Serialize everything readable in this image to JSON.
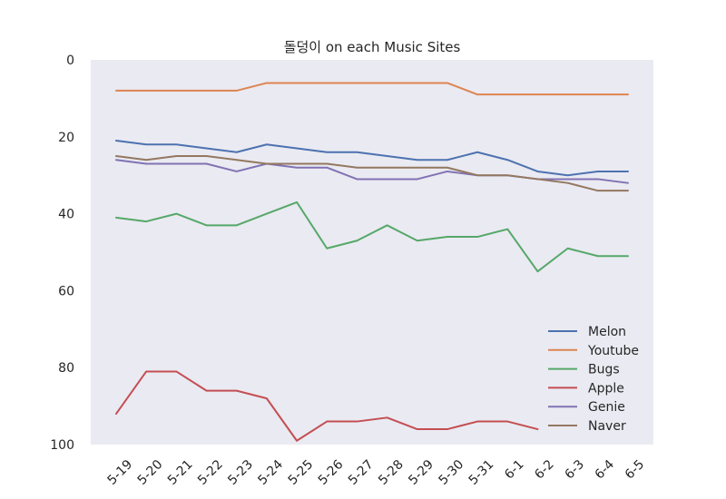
{
  "chart_data": {
    "type": "line",
    "title": "돌덩이 on each Music Sites",
    "xlabel": "",
    "ylabel": "",
    "categories": [
      "5-19",
      "5-20",
      "5-21",
      "5-22",
      "5-23",
      "5-24",
      "5-25",
      "5-26",
      "5-27",
      "5-28",
      "5-29",
      "5-30",
      "5-31",
      "6-1",
      "6-2",
      "6-3",
      "6-4",
      "6-5"
    ],
    "ylim": [
      100,
      0
    ],
    "y_inverted": true,
    "yticks": [
      0,
      20,
      40,
      60,
      80,
      100
    ],
    "grid": false,
    "legend_position": "lower-right",
    "series": [
      {
        "name": "Melon",
        "color": "#4c72b0",
        "values": [
          21,
          22,
          22,
          23,
          24,
          22,
          23,
          24,
          24,
          25,
          26,
          26,
          24,
          26,
          29,
          30,
          29,
          29
        ]
      },
      {
        "name": "Youtube",
        "color": "#dd8452",
        "values": [
          8,
          8,
          8,
          8,
          8,
          6,
          6,
          6,
          6,
          6,
          6,
          6,
          9,
          9,
          9,
          9,
          9,
          9
        ]
      },
      {
        "name": "Bugs",
        "color": "#55a868",
        "values": [
          41,
          42,
          40,
          43,
          43,
          40,
          37,
          49,
          47,
          43,
          47,
          46,
          46,
          44,
          55,
          49,
          51,
          51
        ]
      },
      {
        "name": "Apple",
        "color": "#c44e52",
        "values": [
          92,
          81,
          81,
          86,
          86,
          88,
          99,
          94,
          94,
          93,
          96,
          96,
          94,
          94,
          96,
          null,
          null,
          null
        ]
      },
      {
        "name": "Genie",
        "color": "#8172b3",
        "values": [
          26,
          27,
          27,
          27,
          29,
          27,
          28,
          28,
          31,
          31,
          31,
          29,
          30,
          30,
          31,
          31,
          31,
          32
        ]
      },
      {
        "name": "Naver",
        "color": "#937860",
        "values": [
          25,
          26,
          25,
          25,
          26,
          27,
          27,
          27,
          28,
          28,
          28,
          28,
          30,
          30,
          31,
          32,
          34,
          34
        ]
      }
    ]
  }
}
